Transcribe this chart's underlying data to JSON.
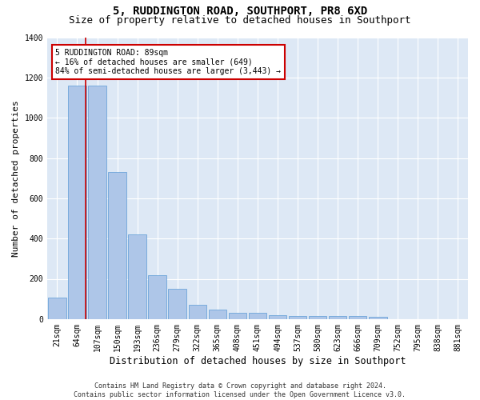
{
  "title": "5, RUDDINGTON ROAD, SOUTHPORT, PR8 6XD",
  "subtitle": "Size of property relative to detached houses in Southport",
  "xlabel": "Distribution of detached houses by size in Southport",
  "ylabel": "Number of detached properties",
  "categories": [
    "21sqm",
    "64sqm",
    "107sqm",
    "150sqm",
    "193sqm",
    "236sqm",
    "279sqm",
    "322sqm",
    "365sqm",
    "408sqm",
    "451sqm",
    "494sqm",
    "537sqm",
    "580sqm",
    "623sqm",
    "666sqm",
    "709sqm",
    "752sqm",
    "795sqm",
    "838sqm",
    "881sqm"
  ],
  "values": [
    107,
    1160,
    1160,
    730,
    420,
    217,
    152,
    70,
    48,
    32,
    32,
    20,
    15,
    15,
    15,
    15,
    10,
    0,
    0,
    0,
    0
  ],
  "bar_color": "#aec6e8",
  "bar_edge_color": "#5b9bd5",
  "bg_color": "#dde8f5",
  "grid_color": "#ffffff",
  "vline_color": "#cc0000",
  "annotation_text": "5 RUDDINGTON ROAD: 89sqm\n← 16% of detached houses are smaller (649)\n84% of semi-detached houses are larger (3,443) →",
  "annotation_box_color": "#cc0000",
  "ylim": [
    0,
    1400
  ],
  "yticks": [
    0,
    200,
    400,
    600,
    800,
    1000,
    1200,
    1400
  ],
  "footer": "Contains HM Land Registry data © Crown copyright and database right 2024.\nContains public sector information licensed under the Open Government Licence v3.0.",
  "title_fontsize": 10,
  "subtitle_fontsize": 9,
  "ylabel_fontsize": 8,
  "xlabel_fontsize": 8.5,
  "tick_fontsize": 7,
  "footer_fontsize": 6
}
